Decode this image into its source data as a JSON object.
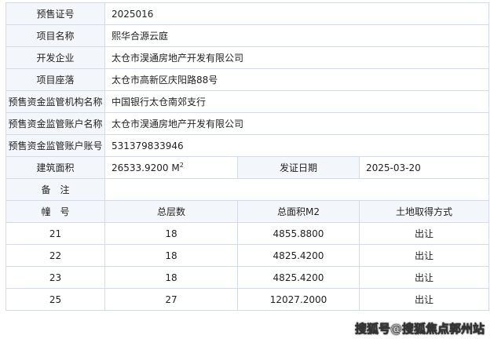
{
  "info": [
    {
      "label": "预售证号",
      "value": "2025016"
    },
    {
      "label": "项目名称",
      "value": "熙华合源云庭"
    },
    {
      "label": "开发企业",
      "value": "太仓市淏通房地产开发有限公司"
    },
    {
      "label": "项目座落",
      "value": "太仓市高新区庆阳路88号"
    },
    {
      "label": "预售资金监管机构名称",
      "value": "中国银行太仓南郊支行"
    },
    {
      "label": "预售资金监管账户名称",
      "value": "太仓市淏通房地产开发有限公司"
    },
    {
      "label": "预售资金监管账户账号",
      "value": "531379833946"
    }
  ],
  "area": {
    "label": "建筑面积",
    "value": "26533.9200 M",
    "unit_sup": "2",
    "date_label": "发证日期",
    "date": "2025-03-20"
  },
  "remark": {
    "label": "备　注",
    "value": ""
  },
  "buildings": {
    "headers": [
      "幢　号",
      "总层数",
      "总面积M2",
      "土地取得方式"
    ],
    "rows": [
      [
        "21",
        "18",
        "4855.8800",
        "出让"
      ],
      [
        "22",
        "18",
        "4825.4200",
        "出让"
      ],
      [
        "23",
        "18",
        "4825.4200",
        "出让"
      ],
      [
        "25",
        "27",
        "12027.2000",
        "出让"
      ]
    ]
  },
  "watermark": "搜狐号@搜狐焦点郭州站"
}
